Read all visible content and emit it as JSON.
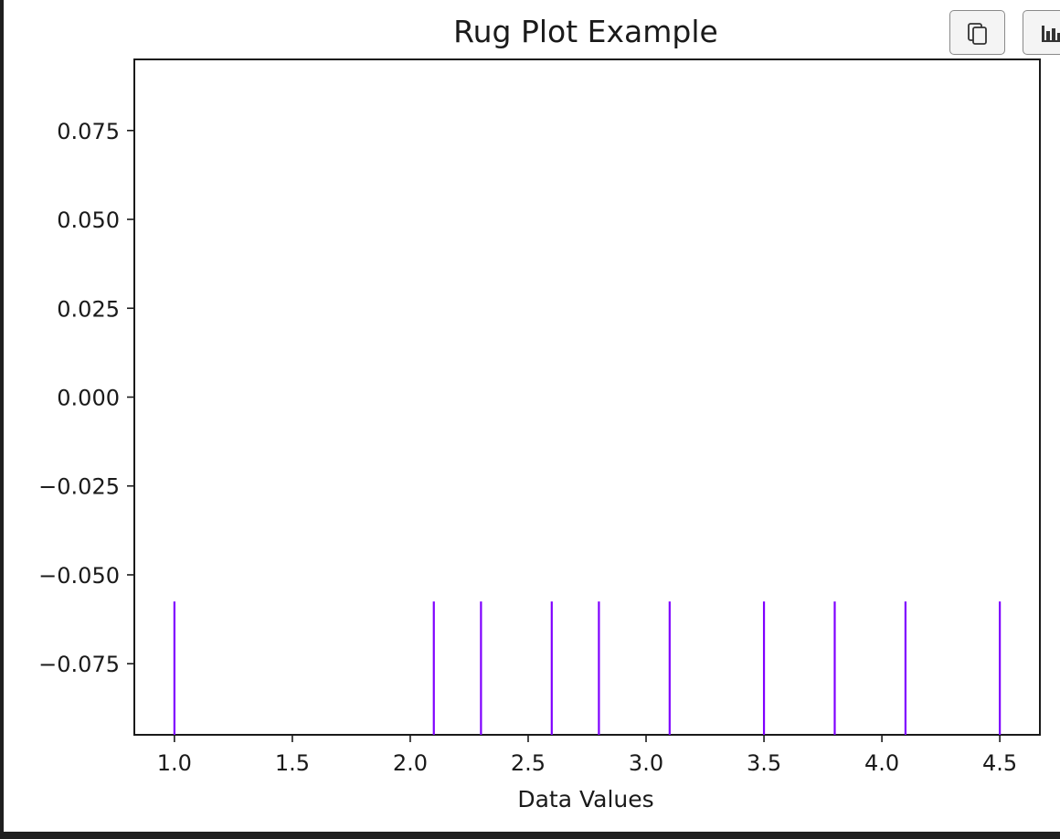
{
  "toolbar": {
    "copy_icon": "copy-icon",
    "chart_icon": "bar-chart-icon"
  },
  "chart_data": {
    "type": "rug",
    "title": "Rug Plot Example",
    "xlabel": "Data Values",
    "ylabel": "",
    "xlim": [
      0.83,
      4.67
    ],
    "ylim": [
      -0.095,
      0.095
    ],
    "x_ticks": [
      1.0,
      1.5,
      2.0,
      2.5,
      3.0,
      3.5,
      4.0,
      4.5
    ],
    "x_tick_labels": [
      "1.0",
      "1.5",
      "2.0",
      "2.5",
      "3.0",
      "3.5",
      "4.0",
      "4.5"
    ],
    "y_ticks": [
      0.075,
      0.05,
      0.025,
      0.0,
      -0.025,
      -0.05,
      -0.075
    ],
    "y_tick_labels": [
      "0.075",
      "0.050",
      "0.025",
      "0.000",
      "−0.025",
      "−0.050",
      "−0.075"
    ],
    "values": [
      1.0,
      2.1,
      2.3,
      2.6,
      2.8,
      3.1,
      3.5,
      3.8,
      4.1,
      4.5
    ],
    "rug_span": [
      -0.095,
      -0.0575
    ],
    "color": "#7f00ff",
    "grid": false
  }
}
